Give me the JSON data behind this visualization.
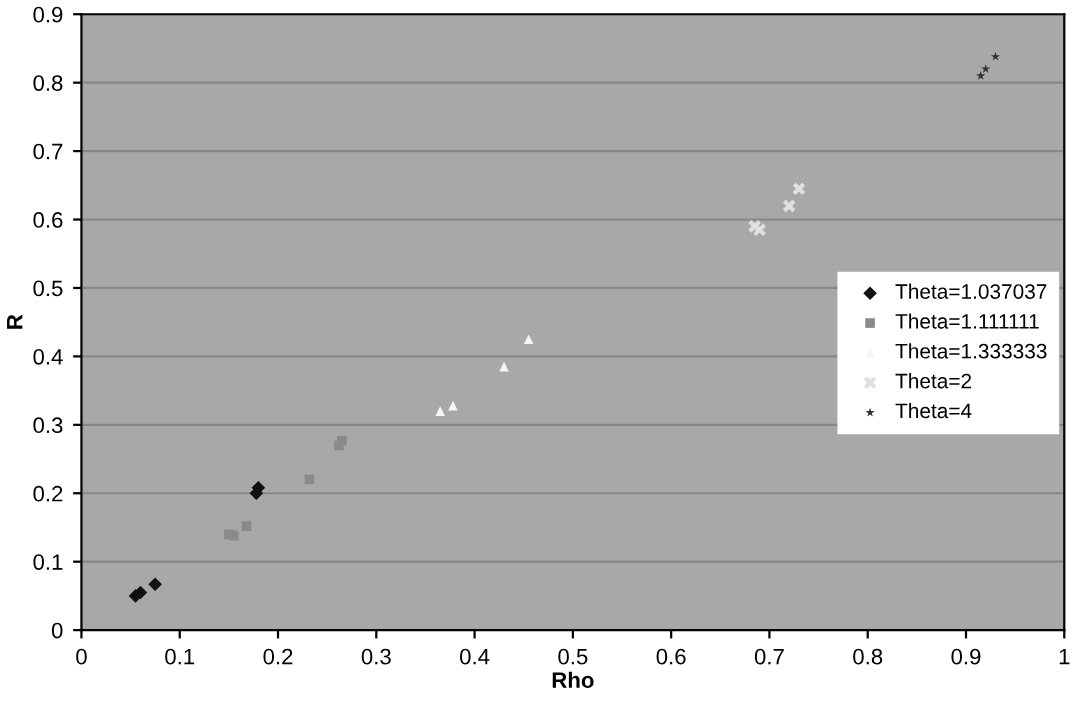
{
  "chart_data": {
    "type": "scatter",
    "xlabel": "Rho",
    "ylabel": "R",
    "xlim": [
      0,
      1
    ],
    "xticks": [
      0,
      0.1,
      0.2,
      0.3,
      0.4,
      0.5,
      0.6,
      0.7,
      0.8,
      0.9,
      1
    ],
    "ylim": [
      0,
      0.9
    ],
    "yticks": [
      0,
      0.1,
      0.2,
      0.3,
      0.4,
      0.5,
      0.6,
      0.7,
      0.8,
      0.9
    ],
    "grid": "y",
    "legend": "right",
    "series": [
      {
        "name": "Theta=1.037037",
        "color": "#111111",
        "marker": "diamond",
        "x": [
          0.055,
          0.06,
          0.075,
          0.178,
          0.18
        ],
        "values": [
          0.05,
          0.055,
          0.067,
          0.2,
          0.208
        ]
      },
      {
        "name": "Theta=1.111111",
        "color": "#8a8a8a",
        "marker": "square",
        "x": [
          0.15,
          0.155,
          0.168,
          0.232,
          0.262,
          0.265
        ],
        "values": [
          0.14,
          0.138,
          0.152,
          0.22,
          0.27,
          0.277
        ]
      },
      {
        "name": "Theta=1.333333",
        "color": "#f5f5f5",
        "marker": "triangle",
        "x": [
          0.365,
          0.378,
          0.43,
          0.455
        ],
        "values": [
          0.32,
          0.328,
          0.385,
          0.425
        ]
      },
      {
        "name": "Theta=2",
        "color": "#e0e0e0",
        "marker": "cross",
        "x": [
          0.685,
          0.69,
          0.72,
          0.73
        ],
        "values": [
          0.59,
          0.585,
          0.62,
          0.645
        ]
      },
      {
        "name": "Theta=4",
        "color": "#333333",
        "marker": "star",
        "x": [
          0.915,
          0.92,
          0.93
        ],
        "values": [
          0.81,
          0.82,
          0.838
        ]
      }
    ]
  }
}
